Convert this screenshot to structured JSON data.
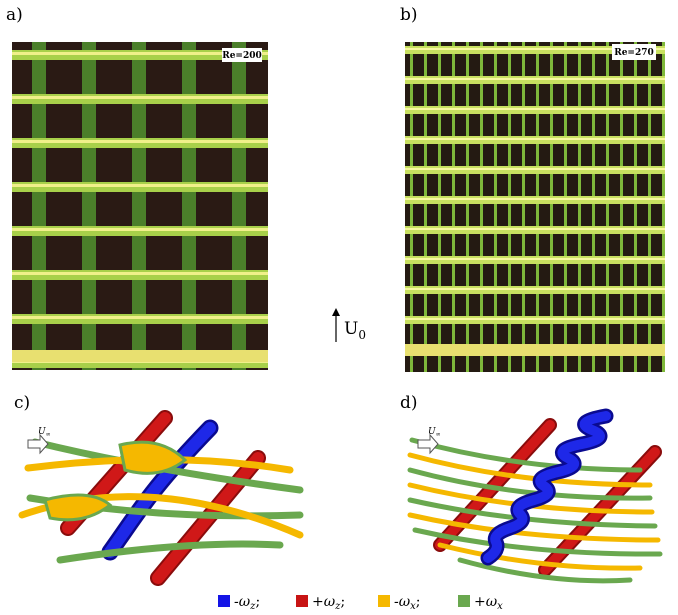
{
  "panels": [
    {
      "label": "a)",
      "annotation": "Re=200"
    },
    {
      "label": "b)",
      "annotation": "Re=270"
    },
    {
      "label": "c)",
      "inflow": {
        "symbol": "U",
        "subscript": "∞"
      }
    },
    {
      "label": "d)",
      "inflow": {
        "symbol": "U",
        "subscript": "∞"
      }
    }
  ],
  "flow_direction": {
    "symbol": "U",
    "subscript": "0"
  },
  "legend": [
    {
      "color": "#1414e6",
      "prefix": "-ω",
      "subscript": "z",
      "suffix": ";"
    },
    {
      "color": "#c81414",
      "prefix": "+ω",
      "subscript": "z",
      "suffix": ";"
    },
    {
      "color": "#f5b800",
      "prefix": "-ω",
      "subscript": "x",
      "suffix": ";"
    },
    {
      "color": "#6aa84f",
      "prefix": "+ω",
      "subscript": "x"
    }
  ]
}
